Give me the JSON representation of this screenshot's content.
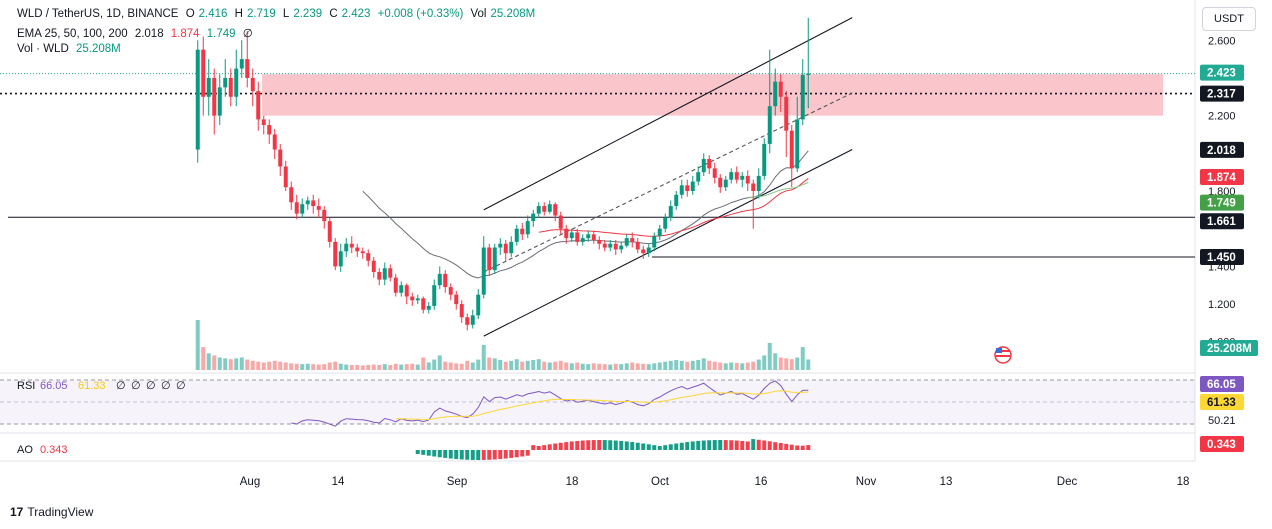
{
  "header": {
    "symbol": "WLD / TetherUS, 1D, BINANCE",
    "o_label": "O",
    "o_value": "2.416",
    "h_label": "H",
    "h_value": "2.719",
    "l_label": "L",
    "l_value": "2.239",
    "c_label": "C",
    "c_value": "2.423",
    "change": "+0.008 (+0.33%)",
    "vol_label": "Vol",
    "vol_value": "25.208M",
    "ema_label": "EMA 25, 50, 100, 200",
    "ema_values": [
      "2.018",
      "1.874",
      "1.749",
      "∅"
    ],
    "volume_label": "Vol · WLD",
    "volume_value": "25.208M"
  },
  "currency_button": "USDT",
  "brand": "TradingView",
  "chart_data": {
    "type": "candlestick",
    "title": "WLD / TetherUS, 1D, BINANCE",
    "x_ticks": [
      "Aug",
      "14",
      "Sep",
      "18",
      "Oct",
      "16",
      "Nov",
      "13",
      "Dec",
      "18"
    ],
    "y_ticks": [
      "2.600",
      "2.200",
      "1.800",
      "1.400",
      "1.200",
      "1.000"
    ],
    "y_range": [
      0.85,
      2.75
    ],
    "candles": [
      [
        2.02,
        2.55,
        2.6,
        1.95
      ],
      [
        2.55,
        2.3,
        2.62,
        2.2
      ],
      [
        2.3,
        2.4,
        2.5,
        2.2
      ],
      [
        2.4,
        2.2,
        2.45,
        2.1
      ],
      [
        2.2,
        2.35,
        2.42,
        2.15
      ],
      [
        2.35,
        2.4,
        2.5,
        2.3
      ],
      [
        2.4,
        2.3,
        2.45,
        2.25
      ],
      [
        2.3,
        2.45,
        2.55,
        2.25
      ],
      [
        2.45,
        2.5,
        2.6,
        2.4
      ],
      [
        2.5,
        2.4,
        2.65,
        2.35
      ],
      [
        2.4,
        2.33,
        2.45,
        2.25
      ],
      [
        2.33,
        2.18,
        2.38,
        2.12
      ],
      [
        2.18,
        2.15,
        2.2,
        2.1
      ],
      [
        2.15,
        2.1,
        2.18,
        2.05
      ],
      [
        2.1,
        2.02,
        2.13,
        1.97
      ],
      [
        2.02,
        1.93,
        2.05,
        1.88
      ],
      [
        1.93,
        1.82,
        1.96,
        1.8
      ],
      [
        1.82,
        1.74,
        1.85,
        1.7
      ],
      [
        1.74,
        1.68,
        1.78,
        1.65
      ],
      [
        1.68,
        1.73,
        1.76,
        1.66
      ],
      [
        1.73,
        1.75,
        1.77,
        1.7
      ],
      [
        1.75,
        1.72,
        1.78,
        1.68
      ],
      [
        1.72,
        1.7,
        1.76,
        1.66
      ],
      [
        1.7,
        1.64,
        1.72,
        1.6
      ],
      [
        1.64,
        1.53,
        1.66,
        1.5
      ],
      [
        1.53,
        1.4,
        1.55,
        1.38
      ],
      [
        1.4,
        1.48,
        1.52,
        1.37
      ],
      [
        1.48,
        1.52,
        1.55,
        1.45
      ],
      [
        1.52,
        1.5,
        1.56,
        1.47
      ],
      [
        1.5,
        1.48,
        1.52,
        1.45
      ],
      [
        1.48,
        1.47,
        1.5,
        1.44
      ],
      [
        1.47,
        1.43,
        1.49,
        1.4
      ],
      [
        1.43,
        1.37,
        1.45,
        1.34
      ],
      [
        1.37,
        1.33,
        1.39,
        1.3
      ],
      [
        1.33,
        1.39,
        1.42,
        1.3
      ],
      [
        1.39,
        1.34,
        1.41,
        1.32
      ],
      [
        1.34,
        1.26,
        1.36,
        1.24
      ],
      [
        1.26,
        1.3,
        1.32,
        1.24
      ],
      [
        1.3,
        1.24,
        1.31,
        1.2
      ],
      [
        1.24,
        1.22,
        1.26,
        1.19
      ],
      [
        1.22,
        1.23,
        1.25,
        1.2
      ],
      [
        1.23,
        1.17,
        1.24,
        1.15
      ],
      [
        1.17,
        1.19,
        1.21,
        1.15
      ],
      [
        1.19,
        1.3,
        1.33,
        1.17
      ],
      [
        1.3,
        1.36,
        1.4,
        1.28
      ],
      [
        1.36,
        1.29,
        1.38,
        1.26
      ],
      [
        1.29,
        1.25,
        1.31,
        1.22
      ],
      [
        1.25,
        1.2,
        1.27,
        1.17
      ],
      [
        1.2,
        1.13,
        1.22,
        1.1
      ],
      [
        1.13,
        1.09,
        1.15,
        1.06
      ],
      [
        1.09,
        1.14,
        1.17,
        1.07
      ],
      [
        1.14,
        1.25,
        1.28,
        1.12
      ],
      [
        1.25,
        1.5,
        1.56,
        1.23
      ],
      [
        1.5,
        1.38,
        1.52,
        1.35
      ],
      [
        1.38,
        1.5,
        1.52,
        1.36
      ],
      [
        1.5,
        1.52,
        1.55,
        1.46
      ],
      [
        1.52,
        1.47,
        1.54,
        1.43
      ],
      [
        1.47,
        1.53,
        1.56,
        1.45
      ],
      [
        1.53,
        1.6,
        1.62,
        1.51
      ],
      [
        1.6,
        1.57,
        1.63,
        1.54
      ],
      [
        1.57,
        1.64,
        1.67,
        1.55
      ],
      [
        1.64,
        1.68,
        1.7,
        1.61
      ],
      [
        1.68,
        1.72,
        1.74,
        1.66
      ],
      [
        1.72,
        1.69,
        1.74,
        1.67
      ],
      [
        1.69,
        1.73,
        1.75,
        1.68
      ],
      [
        1.73,
        1.67,
        1.74,
        1.64
      ],
      [
        1.67,
        1.6,
        1.69,
        1.57
      ],
      [
        1.6,
        1.55,
        1.62,
        1.52
      ],
      [
        1.55,
        1.58,
        1.6,
        1.53
      ],
      [
        1.58,
        1.53,
        1.6,
        1.51
      ],
      [
        1.53,
        1.55,
        1.57,
        1.51
      ],
      [
        1.55,
        1.57,
        1.59,
        1.53
      ],
      [
        1.57,
        1.54,
        1.59,
        1.52
      ],
      [
        1.54,
        1.52,
        1.56,
        1.49
      ],
      [
        1.52,
        1.5,
        1.54,
        1.48
      ],
      [
        1.5,
        1.52,
        1.54,
        1.48
      ],
      [
        1.52,
        1.49,
        1.54,
        1.46
      ],
      [
        1.49,
        1.51,
        1.53,
        1.47
      ],
      [
        1.51,
        1.55,
        1.57,
        1.5
      ],
      [
        1.55,
        1.53,
        1.58,
        1.5
      ],
      [
        1.53,
        1.49,
        1.55,
        1.47
      ],
      [
        1.49,
        1.47,
        1.51,
        1.44
      ],
      [
        1.47,
        1.5,
        1.52,
        1.45
      ],
      [
        1.5,
        1.56,
        1.58,
        1.48
      ],
      [
        1.56,
        1.6,
        1.62,
        1.54
      ],
      [
        1.6,
        1.66,
        1.68,
        1.58
      ],
      [
        1.66,
        1.72,
        1.75,
        1.64
      ],
      [
        1.72,
        1.78,
        1.8,
        1.7
      ],
      [
        1.78,
        1.83,
        1.86,
        1.76
      ],
      [
        1.83,
        1.8,
        1.86,
        1.77
      ],
      [
        1.8,
        1.85,
        1.88,
        1.78
      ],
      [
        1.85,
        1.9,
        1.93,
        1.83
      ],
      [
        1.9,
        1.97,
        2.0,
        1.88
      ],
      [
        1.97,
        1.92,
        1.99,
        1.89
      ],
      [
        1.92,
        1.87,
        1.95,
        1.84
      ],
      [
        1.87,
        1.82,
        1.89,
        1.79
      ],
      [
        1.82,
        1.86,
        1.88,
        1.8
      ],
      [
        1.86,
        1.9,
        1.92,
        1.84
      ],
      [
        1.9,
        1.86,
        1.93,
        1.84
      ],
      [
        1.86,
        1.88,
        1.9,
        1.82
      ],
      [
        1.88,
        1.84,
        1.91,
        1.8
      ],
      [
        1.84,
        1.8,
        1.86,
        1.6
      ],
      [
        1.8,
        1.88,
        1.92,
        1.76
      ],
      [
        1.88,
        2.05,
        2.08,
        1.86
      ],
      [
        2.05,
        2.25,
        2.55,
        2.0
      ],
      [
        2.25,
        2.38,
        2.45,
        2.2
      ],
      [
        2.38,
        2.3,
        2.42,
        2.22
      ],
      [
        2.3,
        2.12,
        2.33,
        1.98
      ],
      [
        2.12,
        1.92,
        2.15,
        1.82
      ],
      [
        1.92,
        2.18,
        2.3,
        1.9
      ],
      [
        2.18,
        2.416,
        2.5,
        2.15
      ],
      [
        2.416,
        2.423,
        2.719,
        2.239
      ]
    ],
    "volumes_m": [
      120,
      55,
      40,
      35,
      30,
      28,
      26,
      28,
      30,
      25,
      22,
      20,
      18,
      20,
      22,
      20,
      18,
      16,
      15,
      14,
      15,
      14,
      13,
      14,
      18,
      20,
      15,
      13,
      12,
      12,
      11,
      12,
      13,
      12,
      14,
      12,
      15,
      13,
      14,
      15,
      13,
      30,
      18,
      25,
      35,
      20,
      18,
      16,
      15,
      22,
      18,
      25,
      60,
      30,
      28,
      24,
      20,
      22,
      26,
      20,
      22,
      24,
      26,
      20,
      18,
      20,
      22,
      18,
      16,
      18,
      15,
      14,
      16,
      15,
      14,
      13,
      15,
      14,
      16,
      18,
      16,
      15,
      14,
      16,
      18,
      20,
      22,
      24,
      22,
      20,
      22,
      24,
      28,
      22,
      20,
      18,
      16,
      18,
      17,
      16,
      18,
      20,
      25,
      35,
      65,
      40,
      30,
      28,
      26,
      30,
      55,
      25.208
    ],
    "emas": [
      {
        "name": "EMA 25",
        "value": 2.018,
        "color": "#5d606b"
      },
      {
        "name": "EMA 50",
        "value": 1.874,
        "color": "#f23645"
      },
      {
        "name": "EMA 100",
        "value": 1.749,
        "color": "#26a640"
      },
      {
        "name": "EMA 200",
        "value": "∅"
      }
    ],
    "price_labels": [
      {
        "value": "2.423",
        "color": "#22ab94"
      },
      {
        "value": "2.317",
        "color": "#131722"
      },
      {
        "value": "2.018",
        "color": "#131722"
      },
      {
        "value": "1.874",
        "color": "#f23645"
      },
      {
        "value": "1.749",
        "color": "#43a047"
      },
      {
        "value": "1.661",
        "color": "#131722"
      },
      {
        "value": "1.450",
        "color": "#131722"
      },
      {
        "value": "25.208M",
        "color": "#22ab94"
      }
    ],
    "horizontal_levels": [
      2.317,
      1.661,
      1.45
    ],
    "resistance_zone": [
      2.2,
      2.42
    ],
    "channel": {
      "upper": [
        [
          52,
          1.7
        ],
        [
          119,
          2.72
        ]
      ],
      "mid": [
        [
          52,
          1.37
        ],
        [
          119,
          2.32
        ]
      ],
      "lower": [
        [
          52,
          1.03
        ],
        [
          119,
          2.02
        ]
      ]
    },
    "rsi": {
      "label": "RSI",
      "value": "66.05",
      "signal": "61.33",
      "extra": [
        "∅",
        "∅",
        "∅",
        "∅",
        "∅"
      ],
      "level": "50.21",
      "series": [
        null,
        null,
        null,
        null,
        null,
        null,
        null,
        null,
        null,
        null,
        null,
        null,
        null,
        null,
        null,
        null,
        null,
        null,
        null,
        null,
        null,
        null,
        null,
        null,
        null,
        null,
        null,
        null,
        null,
        null,
        null,
        null,
        null,
        null,
        null,
        null,
        null,
        null,
        null,
        null,
        null,
        null,
        null,
        null,
        null,
        null,
        null,
        null,
        null,
        null,
        null,
        null,
        null,
        null,
        null,
        null,
        null,
        null,
        null,
        null,
        null,
        null,
        null,
        null,
        null,
        null,
        null,
        null,
        null,
        null,
        null,
        null,
        null,
        null,
        null,
        null,
        null,
        null,
        null,
        null,
        null,
        null,
        null,
        null,
        null,
        null,
        null,
        null,
        null,
        null,
        null,
        null,
        null,
        null,
        null,
        null,
        null,
        null,
        null,
        null,
        null,
        null,
        null,
        null,
        null,
        null,
        null,
        null,
        null,
        null,
        null,
        null
      ]
    },
    "ao": {
      "label": "AO",
      "value": "0.343"
    }
  }
}
